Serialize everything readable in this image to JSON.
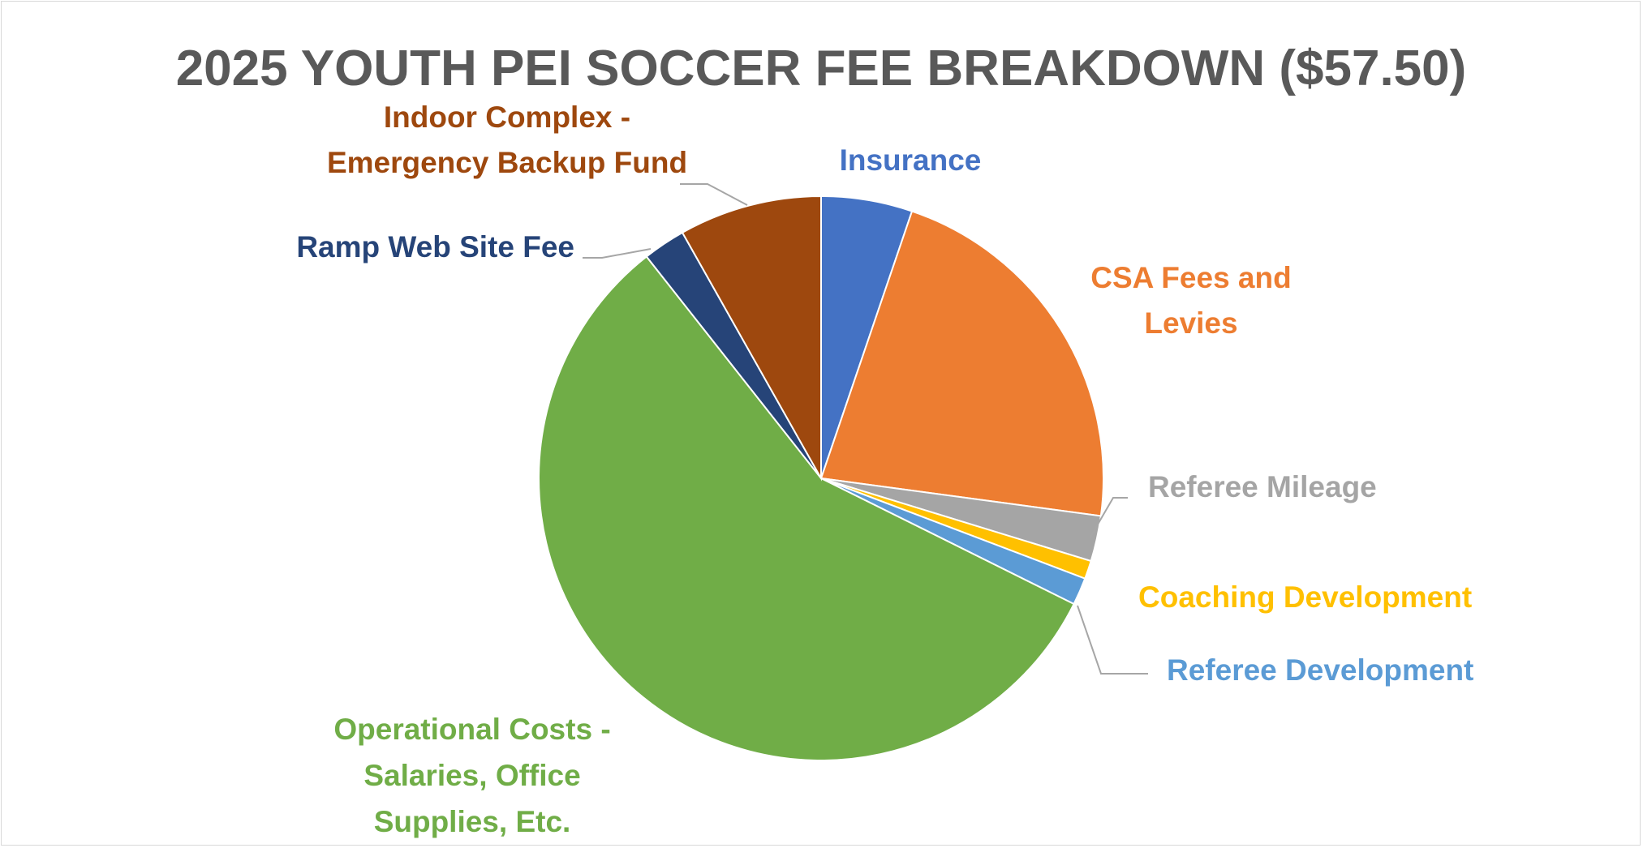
{
  "chart_data": {
    "type": "pie",
    "title": "2025 YOUTH PEI SOCCER FEE BREAKDOWN ($57.50)",
    "legend": "none",
    "slices": [
      {
        "label": "Insurance",
        "label_lines": [
          "Insurance"
        ],
        "value": 3.0,
        "color": "#4472C4"
      },
      {
        "label": "CSA Fees and Levies",
        "label_lines": [
          "CSA Fees and",
          "Levies"
        ],
        "value": 12.6,
        "color": "#ED7D31"
      },
      {
        "label": "Referee Mileage",
        "label_lines": [
          "Referee Mileage"
        ],
        "value": 1.5,
        "color": "#A5A5A5"
      },
      {
        "label": "Coaching Development",
        "label_lines": [
          "Coaching Development"
        ],
        "value": 0.6,
        "color": "#FFC000"
      },
      {
        "label": "Referee Development",
        "label_lines": [
          "Referee Development"
        ],
        "value": 0.9,
        "color": "#5B9BD5"
      },
      {
        "label": "Operational Costs - Salaries, Office Supplies, Etc.",
        "label_lines": [
          "Operational Costs -",
          "Salaries, Office",
          "Supplies, Etc."
        ],
        "value": 32.8,
        "color": "#70AD47"
      },
      {
        "label": "Ramp Web Site Fee",
        "label_lines": [
          "Ramp Web Site Fee"
        ],
        "value": 1.4,
        "color": "#264478"
      },
      {
        "label": "Indoor Complex - Emergency Backup Fund",
        "label_lines": [
          "Indoor Complex -",
          "Emergency Backup Fund"
        ],
        "value": 4.7,
        "color": "#9E480E"
      }
    ]
  }
}
